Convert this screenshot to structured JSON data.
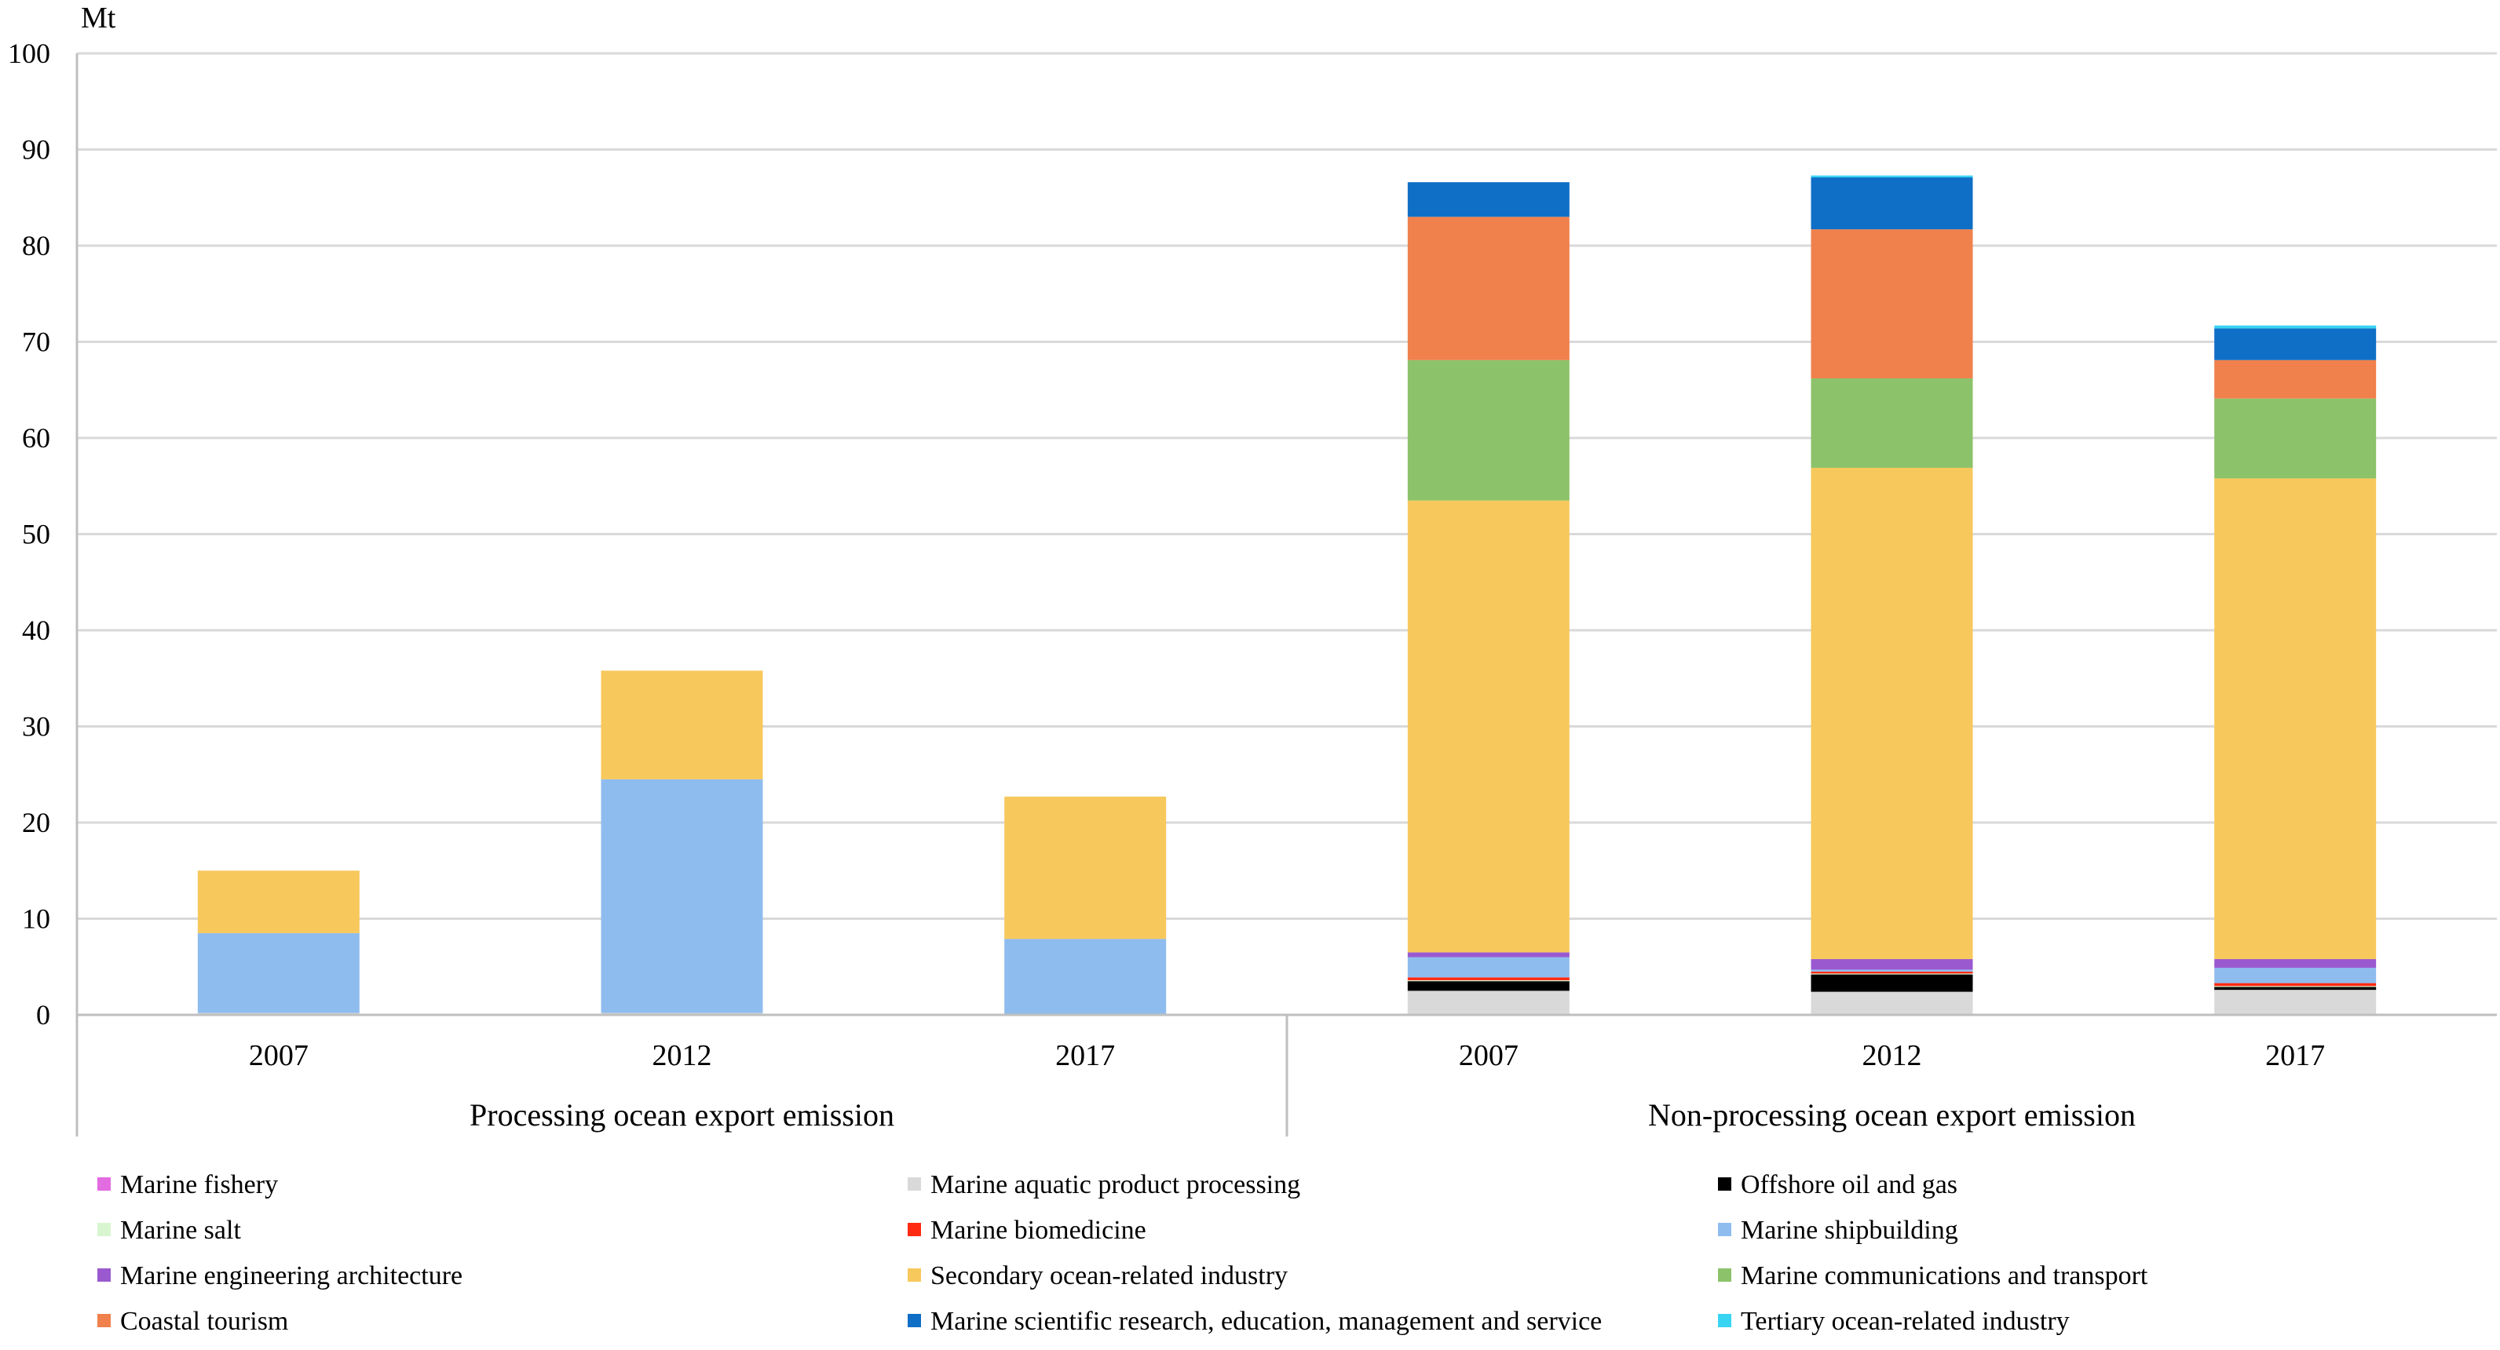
{
  "chart_data": {
    "type": "bar",
    "stacked": true,
    "ylabel": "Mt",
    "ylim": [
      0,
      100
    ],
    "yticks": [
      0,
      10,
      20,
      30,
      40,
      50,
      60,
      70,
      80,
      90,
      100
    ],
    "grid": true,
    "legend_position": "bottom",
    "groups": [
      {
        "label": "Processing ocean export emission",
        "categories": [
          "2007",
          "2012",
          "2017"
        ]
      },
      {
        "label": "Non-processing ocean export emission",
        "categories": [
          "2007",
          "2012",
          "2017"
        ]
      }
    ],
    "categories": [
      "2007",
      "2012",
      "2017",
      "2007",
      "2012",
      "2017"
    ],
    "series": [
      {
        "name": "Marine fishery",
        "color": "#E36CE0",
        "values": [
          0,
          0,
          0,
          0.1,
          0.1,
          0.1
        ]
      },
      {
        "name": "Marine aquatic product processing",
        "color": "#D9D9D9",
        "values": [
          0.2,
          0.2,
          0.1,
          2.4,
          2.3,
          2.5
        ]
      },
      {
        "name": "Offshore oil and gas",
        "color": "#000000",
        "values": [
          0,
          0,
          0,
          1.0,
          1.8,
          0.3
        ]
      },
      {
        "name": "Marine salt",
        "color": "#D9F5D0",
        "values": [
          0,
          0,
          0,
          0.1,
          0.1,
          0.1
        ]
      },
      {
        "name": "Marine biomedicine",
        "color": "#FF2A12",
        "values": [
          0,
          0,
          0,
          0.3,
          0.2,
          0.3
        ]
      },
      {
        "name": "Marine shipbuilding",
        "color": "#8FBCEE",
        "values": [
          8.3,
          24.3,
          7.8,
          2.1,
          0.2,
          1.6
        ]
      },
      {
        "name": "Marine engineering architecture",
        "color": "#9B59D0",
        "values": [
          0,
          0,
          0,
          0.5,
          1.1,
          0.9
        ]
      },
      {
        "name": "Secondary ocean-related industry",
        "color": "#F7C85C",
        "values": [
          6.5,
          11.3,
          14.8,
          47.0,
          51.1,
          50.0
        ]
      },
      {
        "name": "Marine communications and transport",
        "color": "#8CC26A",
        "values": [
          0,
          0,
          0,
          14.6,
          9.3,
          8.3
        ]
      },
      {
        "name": "Coastal tourism",
        "color": "#F0804C",
        "values": [
          0,
          0,
          0,
          14.9,
          15.5,
          4.0
        ]
      },
      {
        "name": "Marine scientific research, education, management and service",
        "color": "#0F6FC6",
        "values": [
          0,
          0,
          0,
          3.6,
          5.4,
          3.3
        ]
      },
      {
        "name": "Tertiary ocean-related industry",
        "color": "#39D4F2",
        "values": [
          0,
          0,
          0,
          0,
          0.2,
          0.3
        ]
      }
    ]
  }
}
